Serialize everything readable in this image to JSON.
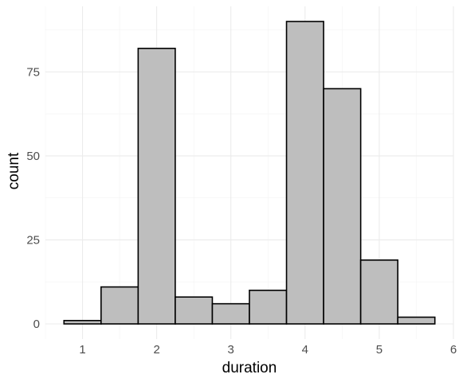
{
  "chart_data": {
    "type": "bar",
    "subtype": "histogram",
    "bins": [
      {
        "x0": 0.75,
        "x1": 1.25,
        "count": 1
      },
      {
        "x0": 1.25,
        "x1": 1.75,
        "count": 11
      },
      {
        "x0": 1.75,
        "x1": 2.25,
        "count": 82
      },
      {
        "x0": 2.25,
        "x1": 2.75,
        "count": 8
      },
      {
        "x0": 2.75,
        "x1": 3.25,
        "count": 6
      },
      {
        "x0": 3.25,
        "x1": 3.75,
        "count": 10
      },
      {
        "x0": 3.75,
        "x1": 4.25,
        "count": 90
      },
      {
        "x0": 4.25,
        "x1": 4.75,
        "count": 70
      },
      {
        "x0": 4.75,
        "x1": 5.25,
        "count": 19
      },
      {
        "x0": 5.25,
        "x1": 5.75,
        "count": 2
      }
    ],
    "xlabel": "duration",
    "ylabel": "count",
    "x_ticks": [
      1,
      2,
      3,
      4,
      5,
      6
    ],
    "y_ticks": [
      0,
      25,
      50,
      75
    ],
    "xlim": [
      0.5,
      6.0
    ],
    "ylim": [
      -4.5,
      94.5
    ],
    "grid": true,
    "bar_fill": "#bebebe",
    "bar_stroke": "#000000",
    "theme": "minimal"
  }
}
